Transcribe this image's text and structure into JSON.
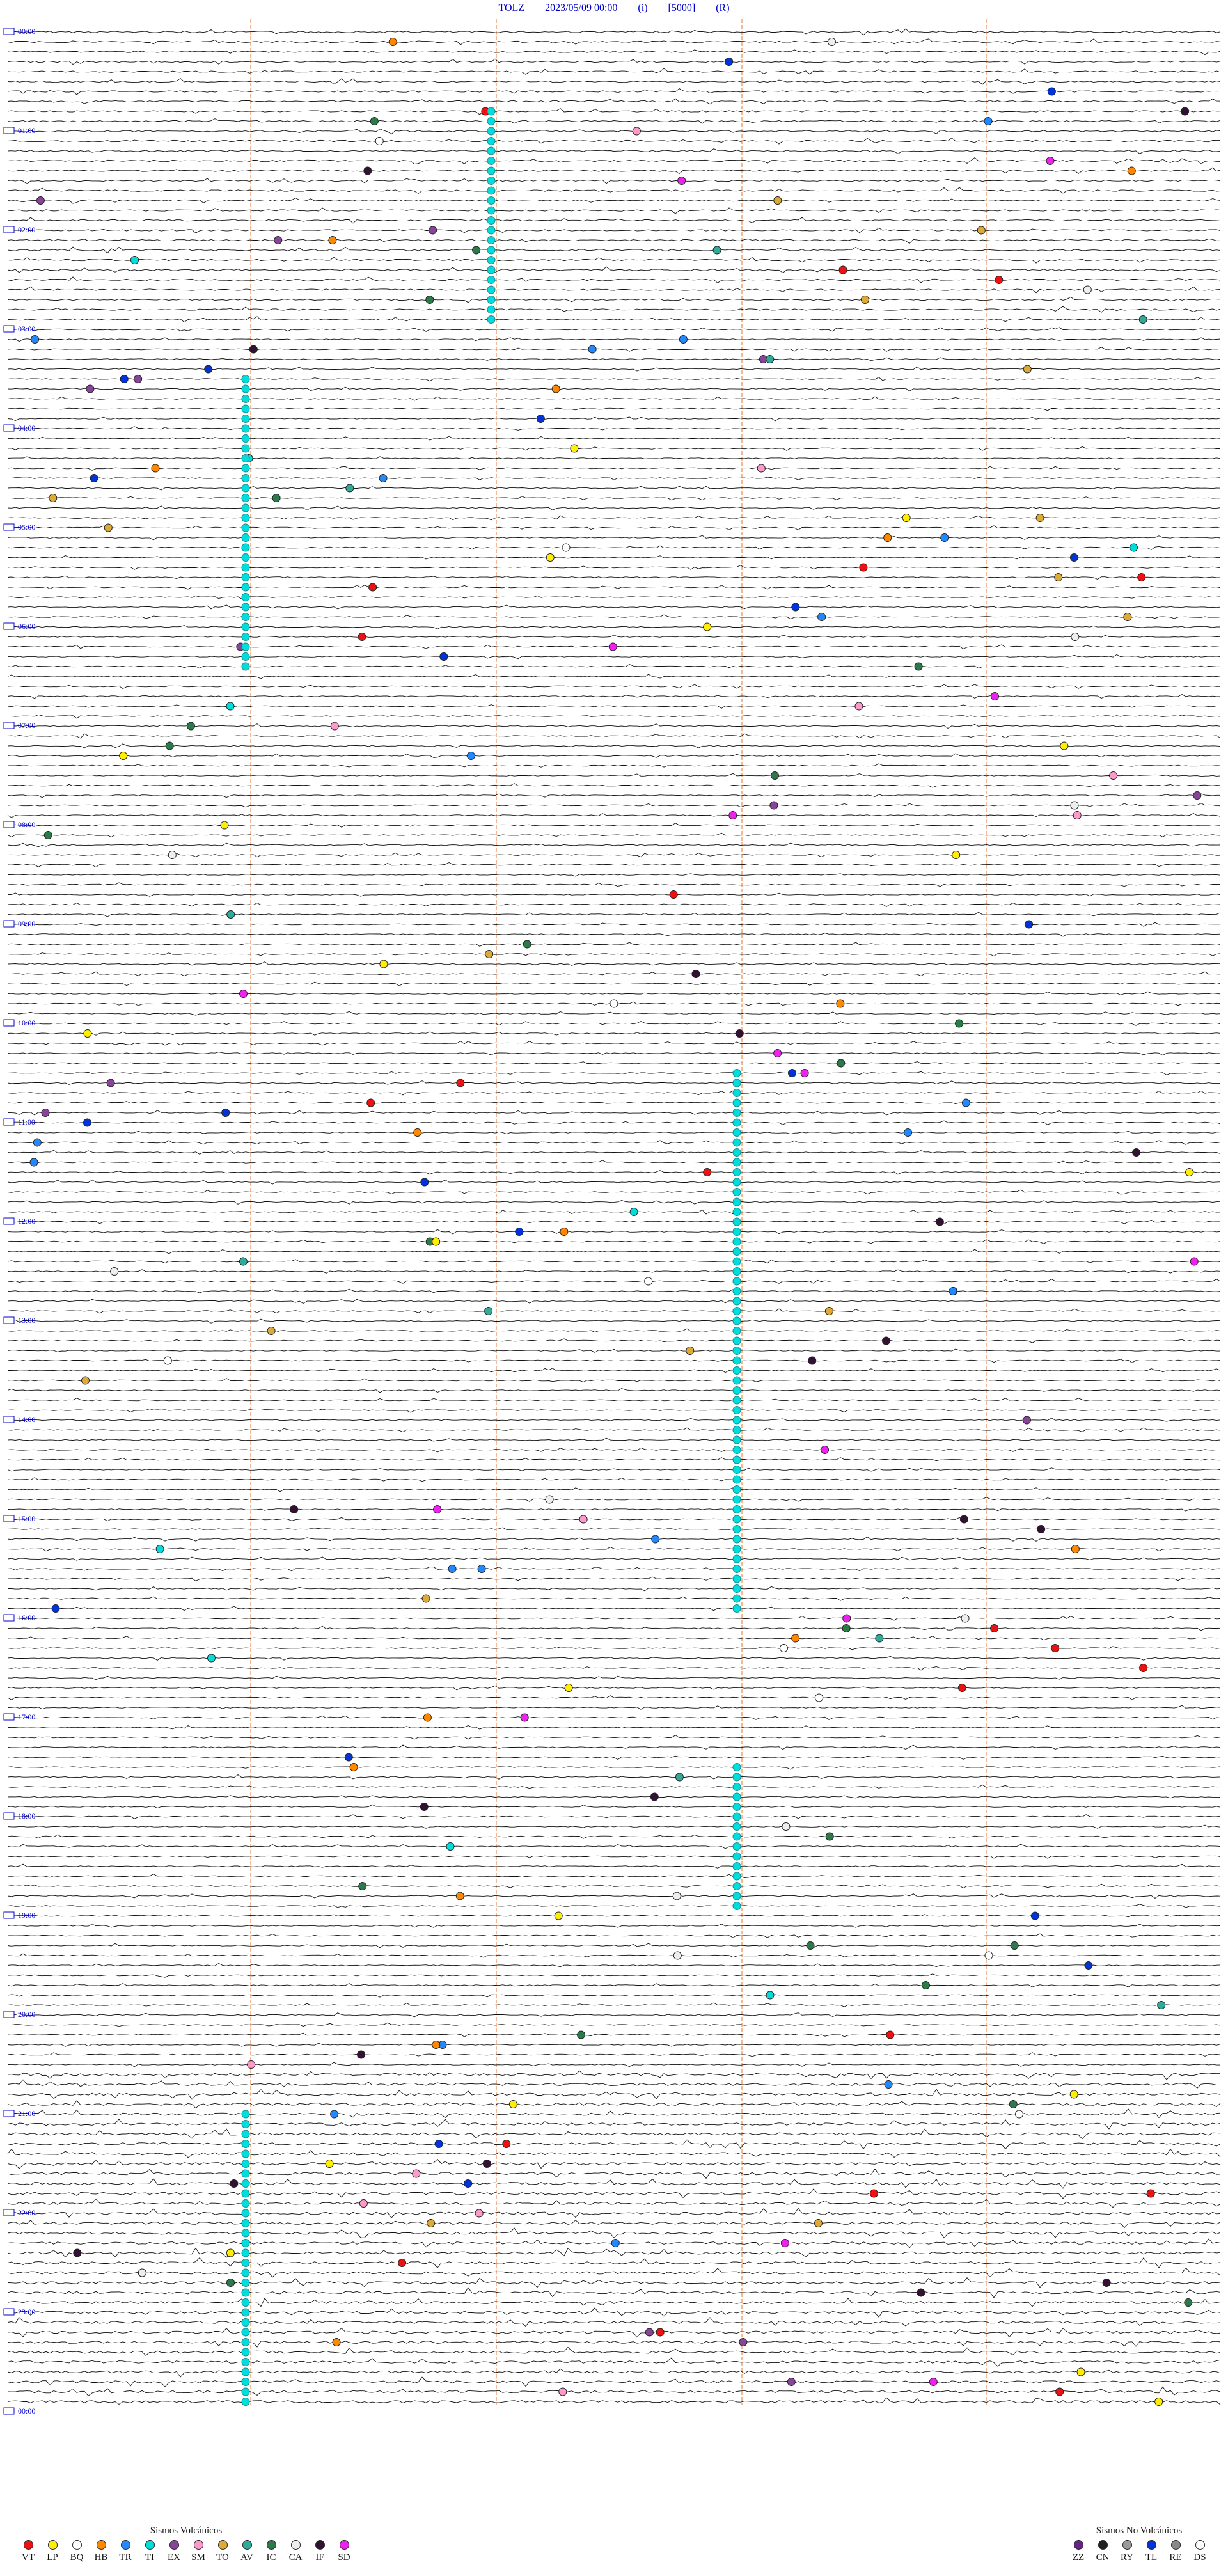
{
  "header": {
    "station": "TOLZ",
    "datetime": "2023/05/09 00:00",
    "flag": "(i)",
    "scale": "[5000]",
    "mode": "(R)"
  },
  "time_labels": [
    "00:00",
    "01:00",
    "02:00",
    "03:00",
    "04:00",
    "05:00",
    "06:00",
    "07:00",
    "08:00",
    "09:00",
    "10:00",
    "11:00",
    "12:00",
    "13:00",
    "14:00",
    "15:00",
    "16:00",
    "17:00",
    "18:00",
    "19:00",
    "20:00",
    "21:00",
    "22:00",
    "23:00",
    "00:00"
  ],
  "legend_volcanic": {
    "title": "Sismos Volcánicos",
    "items": [
      {
        "code": "VT",
        "color": "#ee1111"
      },
      {
        "code": "LP",
        "color": "#ffee00"
      },
      {
        "code": "BQ",
        "color": "#ffffff"
      },
      {
        "code": "HB",
        "color": "#ff8800"
      },
      {
        "code": "TR",
        "color": "#2288ff"
      },
      {
        "code": "TI",
        "color": "#00dddd"
      },
      {
        "code": "EX",
        "color": "#884499"
      },
      {
        "code": "SM",
        "color": "#ff99cc"
      },
      {
        "code": "TO",
        "color": "#ddaa33"
      },
      {
        "code": "AV",
        "color": "#33aa99"
      },
      {
        "code": "IC",
        "color": "#2a7a4a"
      },
      {
        "code": "CA",
        "color": "#eeeeee"
      },
      {
        "code": "IF",
        "color": "#331133"
      },
      {
        "code": "SD",
        "color": "#ee22ee"
      }
    ]
  },
  "legend_nonvolcanic": {
    "title": "Sismos No Volcánicos",
    "items": [
      {
        "code": "ZZ",
        "color": "#662288"
      },
      {
        "code": "CN",
        "color": "#222222"
      },
      {
        "code": "RY",
        "color": "#999999"
      },
      {
        "code": "TL",
        "color": "#0033dd"
      },
      {
        "code": "RE",
        "color": "#888888"
      },
      {
        "code": "DS",
        "color": "#ffffff"
      }
    ]
  }
}
